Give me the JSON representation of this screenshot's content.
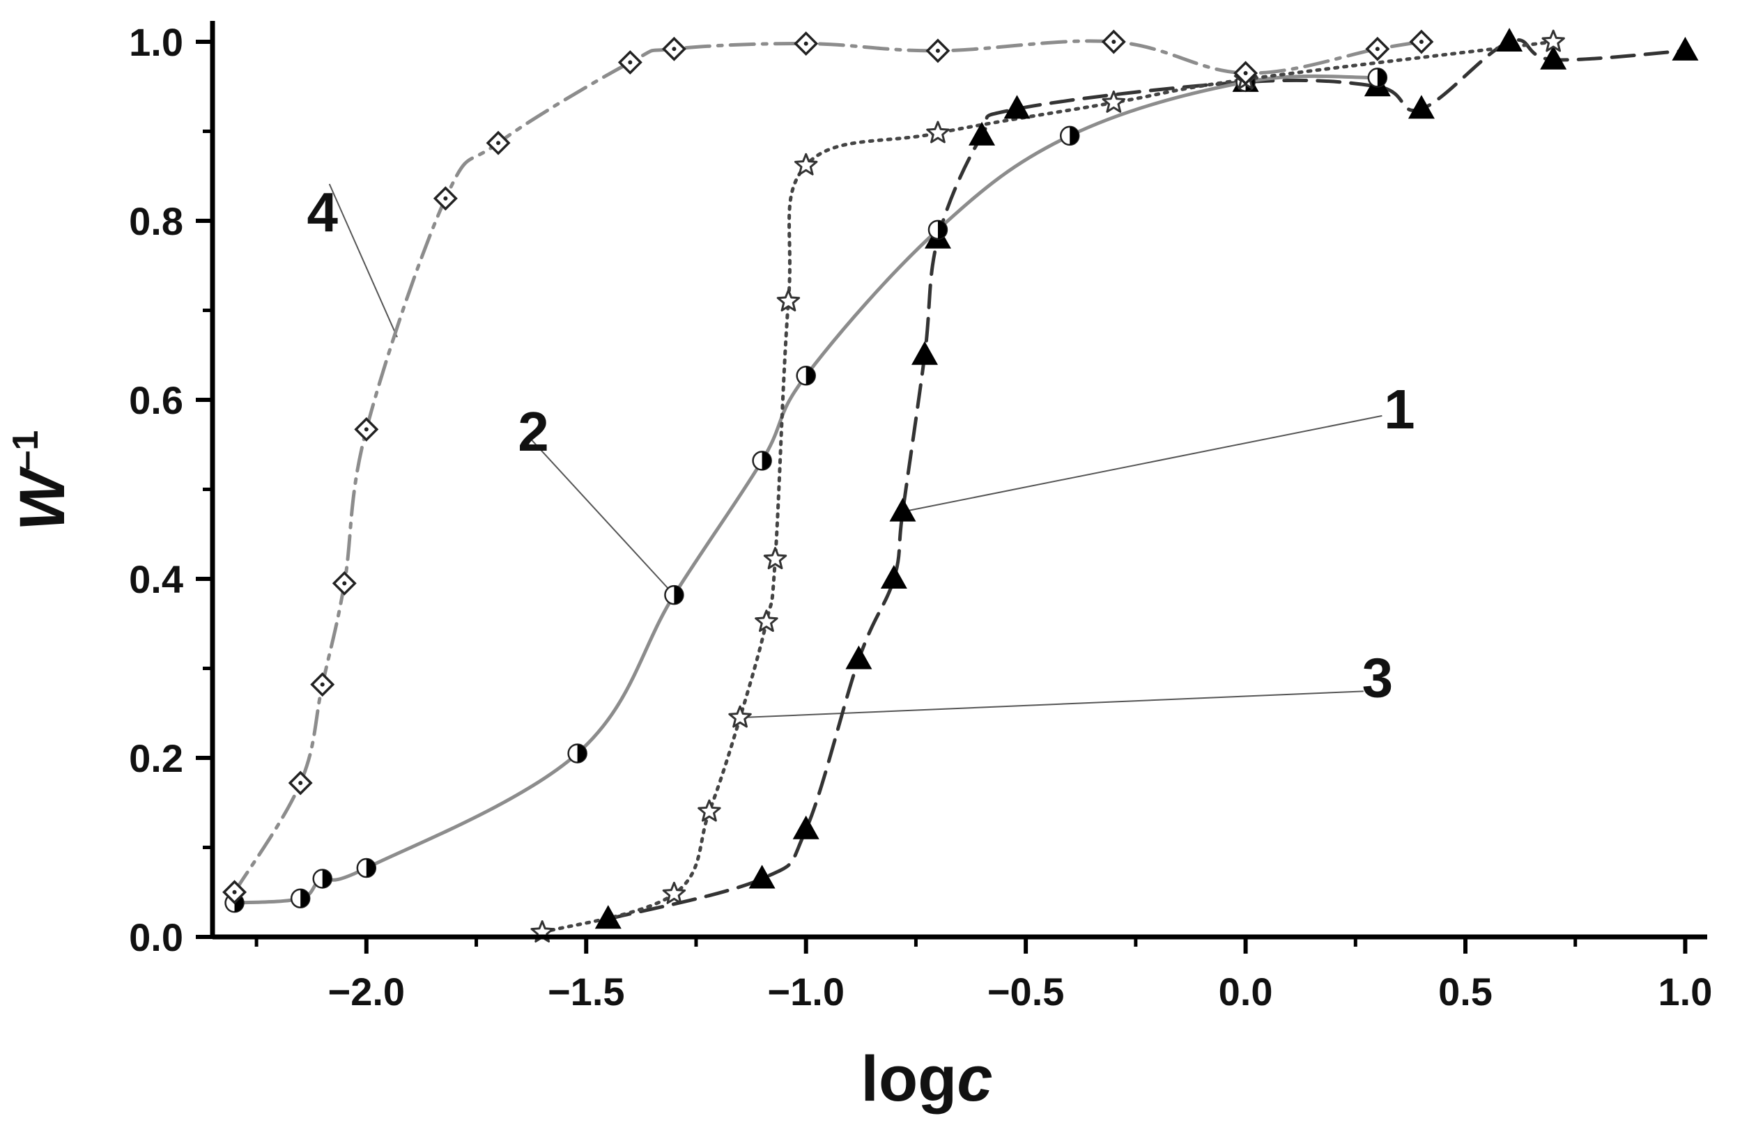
{
  "chart_data": {
    "type": "scatter",
    "title": "",
    "xlabel": {
      "text": "log",
      "italic": "c"
    },
    "ylabel": {
      "text": "W",
      "sup": "–1"
    },
    "xlim": [
      -2.35,
      1.05
    ],
    "ylim": [
      0.0,
      1.0
    ],
    "xticks": [
      "−2.0",
      "−1.5",
      "−1.0",
      "−0.5",
      "0.0",
      "0.5",
      "1.0"
    ],
    "xtick_values": [
      -2.0,
      -1.5,
      -1.0,
      -0.5,
      0.0,
      0.5,
      1.0
    ],
    "yticks": [
      "0.0",
      "0.2",
      "0.4",
      "0.6",
      "0.8",
      "1.0"
    ],
    "ytick_values": [
      0.0,
      0.2,
      0.4,
      0.6,
      0.8,
      1.0
    ],
    "grid": false,
    "series": [
      {
        "name": "1",
        "marker": "filled-triangle",
        "line": "dashed",
        "color": "#333333",
        "label_at": [
          0.35,
          0.59
        ],
        "points": [
          [
            -1.45,
            0.02
          ],
          [
            -1.1,
            0.065
          ],
          [
            -1.0,
            0.12
          ],
          [
            -0.88,
            0.31
          ],
          [
            -0.8,
            0.4
          ],
          [
            -0.78,
            0.475
          ],
          [
            -0.73,
            0.65
          ],
          [
            -0.7,
            0.78
          ],
          [
            -0.6,
            0.895
          ],
          [
            -0.52,
            0.925
          ],
          [
            0.0,
            0.955
          ],
          [
            0.3,
            0.95
          ],
          [
            0.4,
            0.925
          ],
          [
            0.6,
            1.0
          ],
          [
            0.7,
            0.98
          ],
          [
            1.0,
            0.99
          ]
        ]
      },
      {
        "name": "2",
        "marker": "half-filled-circle",
        "line": "solid",
        "color": "#8c8c8c",
        "label_at": [
          -1.62,
          0.565
        ],
        "points": [
          [
            -2.3,
            0.038
          ],
          [
            -2.15,
            0.043
          ],
          [
            -2.1,
            0.065
          ],
          [
            -2.0,
            0.077
          ],
          [
            -1.52,
            0.205
          ],
          [
            -1.3,
            0.382
          ],
          [
            -1.1,
            0.532
          ],
          [
            -1.0,
            0.627
          ],
          [
            -0.7,
            0.79
          ],
          [
            -0.4,
            0.895
          ],
          [
            0.0,
            0.955
          ],
          [
            0.3,
            0.96
          ]
        ]
      },
      {
        "name": "3",
        "marker": "open-star",
        "line": "dotted",
        "color": "#444444",
        "label_at": [
          0.3,
          0.29
        ],
        "points": [
          [
            -1.6,
            0.005
          ],
          [
            -1.3,
            0.048
          ],
          [
            -1.22,
            0.14
          ],
          [
            -1.15,
            0.245
          ],
          [
            -1.09,
            0.352
          ],
          [
            -1.07,
            0.422
          ],
          [
            -1.04,
            0.71
          ],
          [
            -1.0,
            0.862
          ],
          [
            -0.7,
            0.898
          ],
          [
            -0.3,
            0.932
          ],
          [
            0.0,
            0.958
          ],
          [
            0.7,
            1.0
          ]
        ]
      },
      {
        "name": "4",
        "marker": "open-diamond-dot",
        "line": "dash-dot",
        "color": "#8c8c8c",
        "label_at": [
          -2.1,
          0.81
        ],
        "points": [
          [
            -2.3,
            0.05
          ],
          [
            -2.15,
            0.172
          ],
          [
            -2.1,
            0.282
          ],
          [
            -2.05,
            0.395
          ],
          [
            -2.0,
            0.567
          ],
          [
            -1.82,
            0.825
          ],
          [
            -1.7,
            0.887
          ],
          [
            -1.4,
            0.977
          ],
          [
            -1.3,
            0.992
          ],
          [
            -1.0,
            0.998
          ],
          [
            -0.7,
            0.99
          ],
          [
            -0.3,
            1.0
          ],
          [
            0.0,
            0.965
          ],
          [
            0.3,
            0.992
          ],
          [
            0.4,
            1.0
          ]
        ]
      }
    ]
  }
}
